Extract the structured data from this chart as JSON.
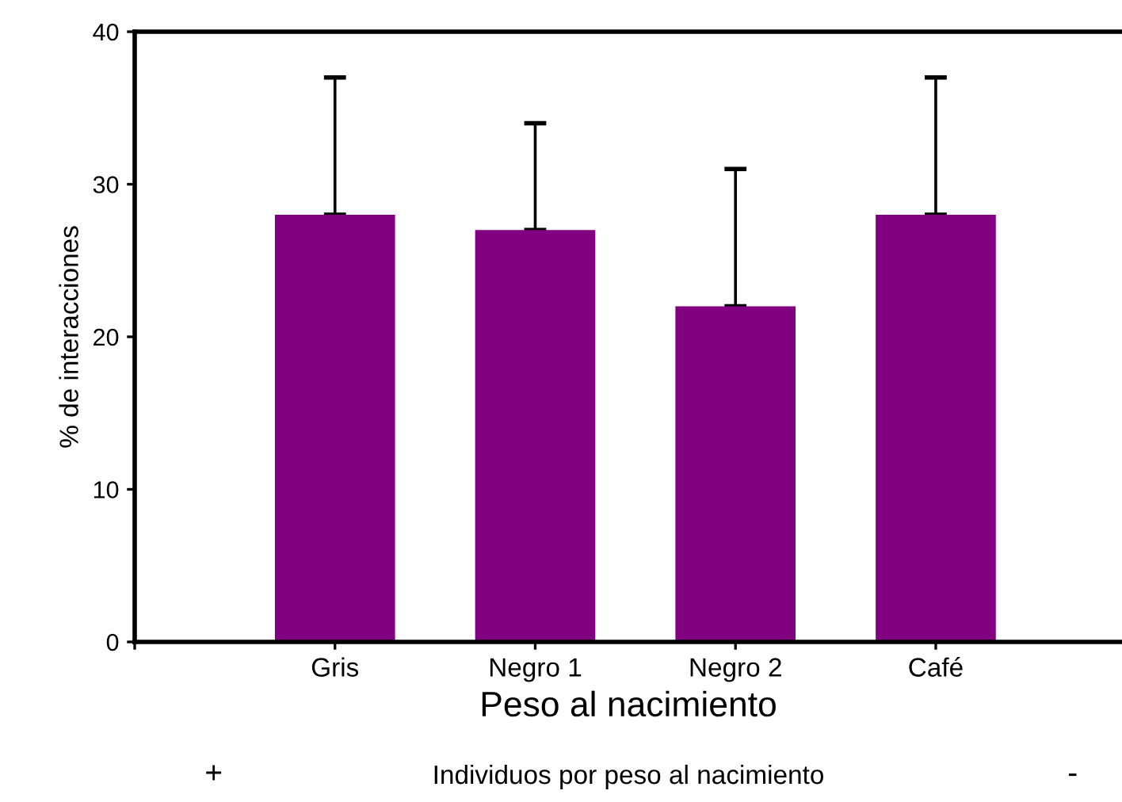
{
  "chart_data": {
    "type": "bar",
    "xlabel": "Peso al nacimiento",
    "ylabel": "% de interacciones",
    "categories": [
      "Gris",
      "Negro 1",
      "Negro 2",
      "Café"
    ],
    "series": [
      {
        "color": "#800080",
        "values": [
          28,
          27,
          22,
          28
        ],
        "errors": [
          [
            28,
            37
          ],
          [
            27,
            34
          ],
          [
            22,
            31
          ],
          [
            28,
            37
          ]
        ]
      }
    ],
    "ylim": [
      0,
      40
    ],
    "yticks": [
      0,
      10,
      20,
      30,
      40
    ],
    "grid": false,
    "legend": false,
    "annotations": [
      "+",
      "Individuos por peso al nacimiento",
      "-"
    ]
  }
}
